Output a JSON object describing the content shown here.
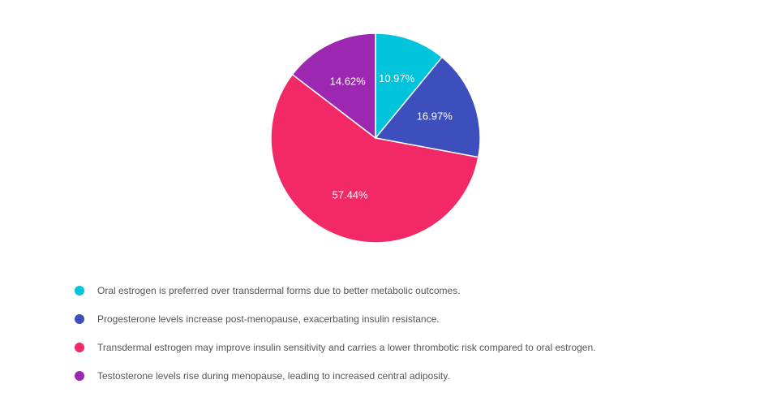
{
  "chart_data": {
    "type": "pie",
    "title": "",
    "slices": [
      {
        "label": "Oral estrogen is preferred over transdermal forms due to better metabolic outcomes.",
        "value": 10.97,
        "display": "10.97%",
        "color": "#00c4dc"
      },
      {
        "label": "Progesterone levels increase post-menopause, exacerbating insulin resistance.",
        "value": 16.97,
        "display": "16.97%",
        "color": "#3d4fbd"
      },
      {
        "label": "Transdermal estrogen may improve insulin sensitivity and carries a lower thrombotic risk compared to oral estrogen.",
        "value": 57.44,
        "display": "57.44%",
        "color": "#f22867"
      },
      {
        "label": "Testosterone levels rise during menopause, leading to increased central adiposity.",
        "value": 14.62,
        "display": "14.62%",
        "color": "#9c27b0"
      }
    ],
    "legend": {
      "position": "bottom"
    }
  }
}
